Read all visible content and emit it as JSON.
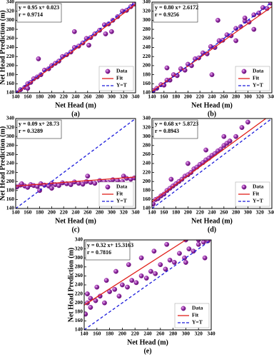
{
  "chart_data": [
    {
      "type": "scatter",
      "caption": "(a)",
      "xlabel": "Net Head (m)",
      "ylabel": "Net Head Prediction (m)",
      "annotations": [
        "y = 0.95 x+ 0.023",
        "r = 0.9714"
      ],
      "xlim": [
        140,
        340
      ],
      "ylim": [
        140,
        340
      ],
      "xticks": [
        140,
        160,
        180,
        200,
        220,
        240,
        260,
        280,
        300,
        320,
        340
      ],
      "yticks": [
        140,
        160,
        180,
        200,
        220,
        240,
        260,
        280,
        300,
        320,
        340
      ],
      "legend": "lower right",
      "series": [
        {
          "name": "Data",
          "color": "#8b1a9b",
          "x": [
            142,
            148,
            155,
            160,
            165,
            170,
            176,
            182,
            188,
            195,
            200,
            206,
            212,
            218,
            225,
            232,
            238,
            245,
            252,
            258,
            265,
            272,
            280,
            288,
            295,
            302,
            310,
            318,
            325,
            332,
            338,
            178,
            238,
            262,
            290,
            300,
            160
          ],
          "values": [
            140,
            147,
            152,
            160,
            163,
            171,
            175,
            180,
            190,
            193,
            200,
            205,
            210,
            220,
            224,
            230,
            240,
            243,
            250,
            260,
            262,
            270,
            278,
            290,
            292,
            300,
            308,
            320,
            322,
            330,
            336,
            215,
            275,
            245,
            270,
            275,
            150
          ]
        },
        {
          "name": "Fit",
          "color": "#e0201a",
          "line_style": "solid",
          "x": [
            140,
            340
          ],
          "values": [
            138,
            335
          ]
        },
        {
          "name": "Y=T",
          "color": "#1a1adb",
          "line_style": "dashed",
          "x": [
            140,
            340
          ],
          "values": [
            140,
            340
          ]
        }
      ]
    },
    {
      "type": "scatter",
      "caption": "(b)",
      "xlabel": "Net Head (m)",
      "annotations": [
        "y = 0.80 x+ 2.6172",
        "r = 0.9256"
      ],
      "xlim": [
        140,
        340
      ],
      "ylim": [
        140,
        340
      ],
      "xticks": [
        140,
        160,
        180,
        200,
        220,
        240,
        260,
        280,
        300,
        320,
        340
      ],
      "yticks": [
        140,
        160,
        180,
        200,
        220,
        240,
        260,
        280,
        300,
        320,
        340
      ],
      "legend": "lower right",
      "series": [
        {
          "name": "Data",
          "color": "#8b1a9b",
          "x": [
            142,
            148,
            155,
            160,
            165,
            170,
            176,
            182,
            188,
            195,
            200,
            206,
            212,
            218,
            225,
            232,
            238,
            245,
            252,
            258,
            265,
            272,
            280,
            288,
            295,
            302,
            310,
            318,
            325,
            332,
            338,
            165,
            250,
            295,
            240,
            280,
            310
          ],
          "values": [
            145,
            150,
            158,
            157,
            168,
            168,
            180,
            178,
            193,
            190,
            203,
            200,
            215,
            217,
            228,
            226,
            242,
            240,
            255,
            256,
            268,
            266,
            282,
            286,
            298,
            296,
            312,
            316,
            328,
            326,
            338,
            195,
            300,
            305,
            180,
            255,
            280
          ]
        },
        {
          "name": "Fit",
          "color": "#e0201a",
          "line_style": "solid",
          "x": [
            140,
            340
          ],
          "values": [
            143,
            330
          ]
        },
        {
          "name": "Y=T",
          "color": "#1a1adb",
          "line_style": "dashed",
          "x": [
            140,
            340
          ],
          "values": [
            140,
            340
          ]
        }
      ]
    },
    {
      "type": "scatter",
      "caption": "(c)",
      "xlabel": "Net Head (m)",
      "ylabel": "Net Head Prediction (m)",
      "annotations": [
        "y = 0.09 x+ 28.73",
        "r = 0.3289"
      ],
      "xlim": [
        140,
        340
      ],
      "ylim": [
        140,
        340
      ],
      "xticks": [
        140,
        160,
        180,
        200,
        220,
        240,
        260,
        280,
        300,
        320,
        340
      ],
      "yticks": [
        140,
        160,
        180,
        200,
        220,
        240,
        260,
        280,
        300,
        320,
        340
      ],
      "legend": "lower right",
      "series": [
        {
          "name": "Data",
          "color": "#8b1a9b",
          "x": [
            142,
            148,
            155,
            160,
            165,
            170,
            176,
            182,
            188,
            195,
            200,
            206,
            212,
            218,
            225,
            232,
            238,
            245,
            252,
            258,
            265,
            272,
            280,
            288,
            295,
            302,
            310,
            318,
            325,
            332,
            338,
            180,
            200,
            260,
            300,
            320,
            150
          ],
          "values": [
            188,
            192,
            190,
            187,
            193,
            191,
            189,
            195,
            192,
            190,
            196,
            193,
            191,
            197,
            195,
            193,
            199,
            196,
            194,
            200,
            198,
            196,
            202,
            200,
            198,
            204,
            202,
            200,
            207,
            205,
            208,
            180,
            185,
            212,
            195,
            212,
            195
          ]
        },
        {
          "name": "Fit",
          "color": "#e0201a",
          "line_style": "solid",
          "x": [
            140,
            340
          ],
          "values": [
            190,
            210
          ]
        },
        {
          "name": "Y=T",
          "color": "#1a1adb",
          "line_style": "dashed",
          "x": [
            140,
            340
          ],
          "values": [
            140,
            340
          ]
        }
      ]
    },
    {
      "type": "scatter",
      "caption": "(d)",
      "xlabel": "Net Head (m)",
      "annotations": [
        "y = 0.68 x+ 5.8723",
        "r = 0.8943"
      ],
      "xlim": [
        140,
        340
      ],
      "ylim": [
        140,
        340
      ],
      "xticks": [
        140,
        160,
        180,
        200,
        220,
        240,
        260,
        280,
        300,
        320,
        340
      ],
      "yticks": [
        140,
        160,
        180,
        200,
        220,
        240,
        260,
        280,
        300,
        320,
        340
      ],
      "legend": "lower right",
      "series": [
        {
          "name": "Data",
          "color": "#8b1a9b",
          "x": [
            142,
            146,
            150,
            155,
            160,
            165,
            170,
            175,
            180,
            185,
            190,
            195,
            200,
            205,
            210,
            215,
            220,
            225,
            230,
            235,
            240,
            245,
            250,
            255,
            260,
            265,
            270,
            280,
            290,
            300,
            172,
            200,
            230,
            260
          ],
          "values": [
            150,
            160,
            162,
            168,
            172,
            180,
            185,
            190,
            195,
            200,
            205,
            212,
            215,
            220,
            228,
            232,
            238,
            242,
            248,
            252,
            258,
            262,
            268,
            272,
            280,
            285,
            290,
            300,
            320,
            332,
            205,
            240,
            270,
            300
          ]
        },
        {
          "name": "Fit",
          "color": "#e0201a",
          "line_style": "solid",
          "x": [
            140,
            330
          ],
          "values": [
            155,
            340
          ]
        },
        {
          "name": "Y=T",
          "color": "#1a1adb",
          "line_style": "dashed",
          "x": [
            140,
            340
          ],
          "values": [
            140,
            340
          ]
        }
      ]
    },
    {
      "type": "scatter",
      "caption": "(e)",
      "xlabel": "Net Head (m)",
      "ylabel": "Net Head Prediction (m)",
      "annotations": [
        "y = 0.32 x+ 15.3163",
        "r = 0.7816"
      ],
      "xlim": [
        140,
        340
      ],
      "ylim": [
        140,
        340
      ],
      "xticks": [
        140,
        160,
        180,
        200,
        220,
        240,
        260,
        280,
        300,
        320,
        340
      ],
      "yticks": [
        140,
        160,
        180,
        200,
        220,
        240,
        260,
        280,
        300,
        320,
        340
      ],
      "legend": "lower right",
      "series": [
        {
          "name": "Data",
          "color": "#8b1a9b",
          "x": [
            142,
            145,
            150,
            158,
            165,
            172,
            180,
            188,
            195,
            200,
            208,
            215,
            222,
            230,
            238,
            245,
            252,
            260,
            268,
            275,
            282,
            290,
            298,
            305,
            312,
            320,
            328,
            335,
            145,
            160,
            175,
            190,
            210,
            230,
            250,
            270,
            300,
            320,
            150,
            300,
            330
          ],
          "values": [
            175,
            200,
            190,
            205,
            215,
            200,
            225,
            230,
            215,
            240,
            235,
            250,
            245,
            260,
            255,
            270,
            265,
            285,
            275,
            295,
            290,
            310,
            300,
            320,
            315,
            330,
            335,
            338,
            220,
            235,
            250,
            270,
            285,
            300,
            315,
            330,
            340,
            340,
            210,
            290,
            300
          ]
        },
        {
          "name": "Fit",
          "color": "#e0201a",
          "line_style": "solid",
          "x": [
            140,
            300
          ],
          "values": [
            195,
            340
          ]
        },
        {
          "name": "Y=T",
          "color": "#1a1adb",
          "line_style": "dashed",
          "x": [
            140,
            340
          ],
          "values": [
            140,
            340
          ]
        }
      ]
    }
  ]
}
